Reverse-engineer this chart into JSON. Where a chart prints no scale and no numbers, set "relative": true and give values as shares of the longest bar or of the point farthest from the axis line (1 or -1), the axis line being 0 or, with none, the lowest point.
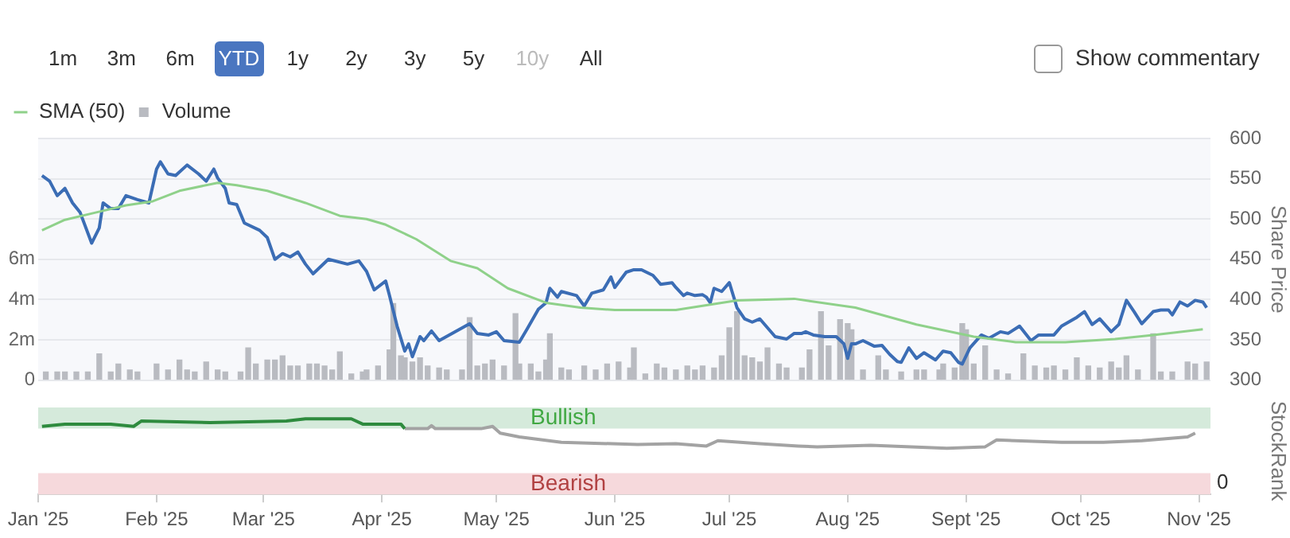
{
  "chart_data": [
    {
      "type": "line",
      "annotations": [
        "1m",
        "3m",
        "6m",
        "YTD",
        "1y",
        "2y",
        "3y",
        "5y",
        "10y",
        "All",
        "Show commentary"
      ],
      "y2label": "Share Price",
      "legend": "top left",
      "grid": "y",
      "tick_labels": "y",
      "xlim": [
        "2025-01-01",
        "2025-11-04"
      ],
      "ylim": [
        0,
        12000000
      ],
      "yticks": [
        {
          "value": 0,
          "label": "0"
        },
        {
          "value": 2000000,
          "label": "2m"
        },
        {
          "value": 4000000,
          "label": "4m"
        },
        {
          "value": 6000000,
          "label": "6m"
        },
        {
          "value": 8000000,
          "label": null
        },
        {
          "value": 10000000,
          "label": null
        },
        {
          "value": 12000000,
          "label": null
        }
      ],
      "y2lim": [
        300,
        600
      ],
      "y2ticks": [
        300,
        350,
        400,
        450,
        500,
        550,
        600
      ],
      "series": [
        {
          "name": "SMA (50)",
          "type": "line",
          "axis": "y2",
          "color": "#8fd18a",
          "x": [
            "2025-01-02",
            "2025-01-08",
            "2025-01-16",
            "2025-01-24",
            "2025-01-31",
            "2025-02-07",
            "2025-02-17",
            "2025-02-22",
            "2025-03-02",
            "2025-03-12",
            "2025-03-21",
            "2025-03-28",
            "2025-04-02",
            "2025-04-10",
            "2025-04-19",
            "2025-04-26",
            "2025-05-04",
            "2025-05-14",
            "2025-05-23",
            "2025-06-01",
            "2025-06-17",
            "2025-07-03",
            "2025-07-18",
            "2025-08-03",
            "2025-08-19",
            "2025-09-03",
            "2025-09-14",
            "2025-09-27",
            "2025-10-10",
            "2025-10-20",
            "2025-11-02"
          ],
          "values": [
            486,
            499,
            508,
            517,
            522,
            535,
            545,
            542,
            535,
            520,
            504,
            500,
            493,
            475,
            448,
            439,
            414,
            396,
            390,
            387,
            387,
            399,
            401,
            390,
            369,
            354,
            347,
            347,
            351,
            356,
            363
          ]
        },
        {
          "name": "Volume",
          "type": "bar",
          "axis": "y",
          "color": "#b9bbc1",
          "x": [
            "2025-01-03",
            "2025-01-06",
            "2025-01-08",
            "2025-01-11",
            "2025-01-14",
            "2025-01-17",
            "2025-01-20",
            "2025-01-22",
            "2025-01-25",
            "2025-01-27",
            "2025-02-01",
            "2025-02-04",
            "2025-02-07",
            "2025-02-09",
            "2025-02-11",
            "2025-02-14",
            "2025-02-17",
            "2025-02-19",
            "2025-02-23",
            "2025-02-25",
            "2025-02-27",
            "2025-03-02",
            "2025-03-04",
            "2025-03-06",
            "2025-03-08",
            "2025-03-10",
            "2025-03-13",
            "2025-03-15",
            "2025-03-17",
            "2025-03-19",
            "2025-03-21",
            "2025-03-24",
            "2025-03-27",
            "2025-03-28",
            "2025-03-31",
            "2025-04-03",
            "2025-04-04",
            "2025-04-06",
            "2025-04-07",
            "2025-04-09",
            "2025-04-11",
            "2025-04-13",
            "2025-04-16",
            "2025-04-18",
            "2025-04-22",
            "2025-04-24",
            "2025-04-26",
            "2025-04-28",
            "2025-04-30",
            "2025-05-03",
            "2025-05-06",
            "2025-05-07",
            "2025-05-10",
            "2025-05-12",
            "2025-05-14",
            "2025-05-15",
            "2025-05-18",
            "2025-05-20",
            "2025-05-24",
            "2025-05-27",
            "2025-05-30",
            "2025-06-02",
            "2025-06-05",
            "2025-06-06",
            "2025-06-09",
            "2025-06-12",
            "2025-06-14",
            "2025-06-17",
            "2025-06-20",
            "2025-06-22",
            "2025-06-24",
            "2025-06-27",
            "2025-06-29",
            "2025-07-01",
            "2025-07-03",
            "2025-07-05",
            "2025-07-07",
            "2025-07-09",
            "2025-07-11",
            "2025-07-14",
            "2025-07-16",
            "2025-07-20",
            "2025-07-22",
            "2025-07-25",
            "2025-07-27",
            "2025-07-30",
            "2025-08-01",
            "2025-08-02",
            "2025-08-05",
            "2025-08-09",
            "2025-08-11",
            "2025-08-15",
            "2025-08-19",
            "2025-08-21",
            "2025-08-25",
            "2025-08-26",
            "2025-08-29",
            "2025-08-31",
            "2025-09-01",
            "2025-09-03",
            "2025-09-06",
            "2025-09-09",
            "2025-09-12",
            "2025-09-16",
            "2025-09-19",
            "2025-09-22",
            "2025-09-24",
            "2025-09-27",
            "2025-09-30",
            "2025-10-03",
            "2025-10-06",
            "2025-10-09",
            "2025-10-11",
            "2025-10-13",
            "2025-10-16",
            "2025-10-20",
            "2025-10-22",
            "2025-10-25",
            "2025-10-29",
            "2025-10-31",
            "2025-11-03"
          ],
          "values": [
            400000,
            400000,
            400000,
            400000,
            400000,
            1300000,
            400000,
            800000,
            500000,
            400000,
            800000,
            500000,
            1000000,
            500000,
            400000,
            900000,
            500000,
            400000,
            400000,
            1600000,
            800000,
            1000000,
            1000000,
            1200000,
            700000,
            700000,
            800000,
            800000,
            700000,
            500000,
            1400000,
            300000,
            400000,
            500000,
            700000,
            1500000,
            3800000,
            1200000,
            1100000,
            900000,
            1100000,
            700000,
            600000,
            500000,
            500000,
            3100000,
            700000,
            800000,
            1000000,
            700000,
            3300000,
            800000,
            800000,
            400000,
            1000000,
            2300000,
            600000,
            500000,
            700000,
            500000,
            800000,
            900000,
            600000,
            1600000,
            300000,
            800000,
            600000,
            500000,
            700000,
            500000,
            700000,
            600000,
            1200000,
            2600000,
            3400000,
            1200000,
            1100000,
            900000,
            1600000,
            800000,
            600000,
            600000,
            1500000,
            3400000,
            1700000,
            3000000,
            2800000,
            2500000,
            500000,
            1200000,
            500000,
            400000,
            500000,
            500000,
            500000,
            800000,
            600000,
            2800000,
            2500000,
            800000,
            1700000,
            500000,
            300000,
            1300000,
            700000,
            600000,
            700000,
            500000,
            1100000,
            700000,
            600000,
            900000,
            600000,
            1200000,
            500000,
            2300000,
            400000,
            400000,
            900000,
            800000,
            900000
          ]
        },
        {
          "axis": "y2",
          "color": "#3b6db5",
          "x": [
            "2025-01-02",
            "2025-01-04",
            "2025-01-06",
            "2025-01-08",
            "2025-01-10",
            "2025-01-12",
            "2025-01-15",
            "2025-01-17",
            "2025-01-18",
            "2025-01-20",
            "2025-01-22",
            "2025-01-24",
            "2025-01-27",
            "2025-01-30",
            "2025-02-01",
            "2025-02-02",
            "2025-02-04",
            "2025-02-06",
            "2025-02-09",
            "2025-02-12",
            "2025-02-14",
            "2025-02-16",
            "2025-02-17",
            "2025-02-19",
            "2025-02-20",
            "2025-02-22",
            "2025-02-24",
            "2025-02-28",
            "2025-03-02",
            "2025-03-04",
            "2025-03-06",
            "2025-03-08",
            "2025-03-10",
            "2025-03-12",
            "2025-03-14",
            "2025-03-18",
            "2025-03-23",
            "2025-03-26",
            "2025-03-28",
            "2025-03-30",
            "2025-04-02",
            "2025-04-03",
            "2025-04-05",
            "2025-04-07",
            "2025-04-08",
            "2025-04-09",
            "2025-04-11",
            "2025-04-12",
            "2025-04-14",
            "2025-04-16",
            "2025-04-24",
            "2025-04-26",
            "2025-04-29",
            "2025-05-01",
            "2025-05-03",
            "2025-05-07",
            "2025-05-09",
            "2025-05-12",
            "2025-05-14",
            "2025-05-15",
            "2025-05-17",
            "2025-05-18",
            "2025-05-22",
            "2025-05-24",
            "2025-05-26",
            "2025-05-29",
            "2025-05-31",
            "2025-06-01",
            "2025-06-04",
            "2025-06-06",
            "2025-06-08",
            "2025-06-11",
            "2025-06-13",
            "2025-06-16",
            "2025-06-17",
            "2025-06-19",
            "2025-06-20",
            "2025-06-22",
            "2025-06-24",
            "2025-06-25",
            "2025-06-26",
            "2025-06-27",
            "2025-06-29",
            "2025-07-01",
            "2025-07-03",
            "2025-07-05",
            "2025-07-07",
            "2025-07-09",
            "2025-07-13",
            "2025-07-16",
            "2025-07-18",
            "2025-07-20",
            "2025-07-21",
            "2025-07-23",
            "2025-07-26",
            "2025-07-29",
            "2025-07-31",
            "2025-08-01",
            "2025-08-02",
            "2025-08-03",
            "2025-08-05",
            "2025-08-08",
            "2025-08-10",
            "2025-08-12",
            "2025-08-14",
            "2025-08-15",
            "2025-08-17",
            "2025-08-19",
            "2025-08-21",
            "2025-08-24",
            "2025-08-26",
            "2025-08-28",
            "2025-08-30",
            "2025-08-31",
            "2025-09-02",
            "2025-09-05",
            "2025-09-07",
            "2025-09-10",
            "2025-09-12",
            "2025-09-13",
            "2025-09-15",
            "2025-09-18",
            "2025-09-20",
            "2025-09-24",
            "2025-09-26",
            "2025-09-30",
            "2025-10-02",
            "2025-10-04",
            "2025-10-06",
            "2025-10-09",
            "2025-10-11",
            "2025-10-13",
            "2025-10-15",
            "2025-10-17",
            "2025-10-20",
            "2025-10-22",
            "2025-10-24",
            "2025-10-25",
            "2025-10-27",
            "2025-10-29",
            "2025-10-31",
            "2025-11-02",
            "2025-11-03"
          ],
          "values": [
            554,
            547,
            529,
            538,
            520,
            508,
            470,
            489,
            520,
            513,
            513,
            529,
            524,
            520,
            562,
            571,
            556,
            554,
            567,
            556,
            547,
            562,
            551,
            538,
            520,
            518,
            495,
            486,
            477,
            450,
            457,
            453,
            459,
            444,
            432,
            450,
            444,
            448,
            435,
            412,
            423,
            405,
            367,
            336,
            345,
            329,
            354,
            349,
            361,
            349,
            370,
            358,
            356,
            360,
            349,
            347,
            363,
            388,
            396,
            414,
            403,
            410,
            405,
            392,
            408,
            412,
            428,
            415,
            434,
            437,
            437,
            430,
            419,
            421,
            415,
            405,
            408,
            405,
            406,
            403,
            396,
            414,
            410,
            421,
            390,
            376,
            372,
            376,
            354,
            351,
            358,
            358,
            360,
            356,
            354,
            354,
            345,
            327,
            345,
            345,
            349,
            342,
            343,
            332,
            323,
            322,
            340,
            327,
            334,
            325,
            336,
            334,
            322,
            320,
            340,
            356,
            352,
            360,
            358,
            361,
            367,
            349,
            356,
            356,
            367,
            378,
            385,
            369,
            376,
            360,
            369,
            399,
            385,
            370,
            385,
            387,
            387,
            381,
            397,
            392,
            399,
            397,
            390
          ]
        }
      ]
    },
    {
      "type": "line",
      "relative": true,
      "y2label": "StockRank",
      "tick_labels": "x",
      "annotations": [
        "0"
      ],
      "xlim": [
        "2025-01-01",
        "2025-11-04"
      ],
      "xticks": [
        {
          "value": "2025-01-01",
          "label": "Jan '25"
        },
        {
          "value": "2025-02-01",
          "label": "Feb '25"
        },
        {
          "value": "2025-03-01",
          "label": "Mar '25"
        },
        {
          "value": "2025-04-01",
          "label": "Apr '25"
        },
        {
          "value": "2025-05-01",
          "label": "May '25"
        },
        {
          "value": "2025-06-01",
          "label": "Jun '25"
        },
        {
          "value": "2025-07-01",
          "label": "Jul '25"
        },
        {
          "value": "2025-08-01",
          "label": "Aug '25"
        },
        {
          "value": "2025-09-01",
          "label": "Sept '25"
        },
        {
          "value": "2025-10-01",
          "label": "Oct '25"
        },
        {
          "value": "2025-11-01",
          "label": "Nov '25"
        }
      ],
      "bands": [
        {
          "axis": "y",
          "from": 0.87,
          "to": 1.15,
          "label": "Bullish",
          "color": "#d5eadb"
        },
        {
          "axis": "y",
          "from": 0,
          "to": 0.28,
          "label": "Bearish",
          "color": "#f6d9dc"
        }
      ],
      "series": [
        {
          "color": "#2e8b3e",
          "x": [
            "2025-01-02",
            "2025-01-08",
            "2025-01-20",
            "2025-01-26",
            "2025-01-28",
            "2025-02-15",
            "2025-03-07",
            "2025-03-12",
            "2025-03-24",
            "2025-03-27",
            "2025-04-06",
            "2025-04-07"
          ],
          "values": [
            0.9,
            0.93,
            0.93,
            0.9,
            0.97,
            0.95,
            0.97,
            1,
            1,
            0.93,
            0.93,
            0.87
          ]
        },
        {
          "color": "#a3a3a3",
          "x": [
            "2025-04-07",
            "2025-04-13",
            "2025-04-14",
            "2025-04-15",
            "2025-04-27",
            "2025-04-30",
            "2025-05-02",
            "2025-05-07",
            "2025-05-18",
            "2025-06-07",
            "2025-06-17",
            "2025-06-25",
            "2025-06-28",
            "2025-07-09",
            "2025-07-19",
            "2025-07-24",
            "2025-08-07",
            "2025-08-27",
            "2025-09-06",
            "2025-09-09",
            "2025-09-26",
            "2025-10-07",
            "2025-10-17",
            "2025-10-29",
            "2025-10-31"
          ],
          "values": [
            0.87,
            0.87,
            0.91,
            0.87,
            0.87,
            0.9,
            0.81,
            0.76,
            0.69,
            0.66,
            0.67,
            0.64,
            0.71,
            0.67,
            0.64,
            0.63,
            0.65,
            0.61,
            0.63,
            0.72,
            0.69,
            0.69,
            0.71,
            0.76,
            0.81
          ]
        }
      ]
    }
  ]
}
